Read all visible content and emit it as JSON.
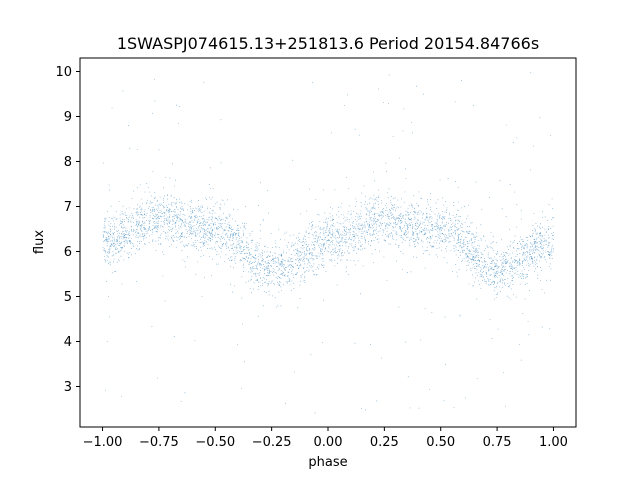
{
  "chart_data": {
    "type": "scatter",
    "title": "1SWASPJ074615.13+251813.6 Period 20154.84766s",
    "xlabel": "phase",
    "ylabel": "flux",
    "xlim": [
      -1.1,
      1.1
    ],
    "ylim": [
      2.1,
      10.3
    ],
    "xticks": [
      -1.0,
      -0.75,
      -0.5,
      -0.25,
      0.0,
      0.25,
      0.5,
      0.75,
      1.0
    ],
    "xtick_labels": [
      "−1.00",
      "−0.75",
      "−0.50",
      "−0.25",
      "0.00",
      "0.25",
      "0.50",
      "0.75",
      "1.00"
    ],
    "yticks": [
      3,
      4,
      5,
      6,
      7,
      8,
      9,
      10
    ],
    "ytick_labels": [
      "3",
      "4",
      "5",
      "6",
      "7",
      "8",
      "9",
      "10"
    ],
    "grid": false,
    "legend": "none",
    "marker_color": "#1f77b4",
    "series": [
      {
        "x_range": [
          -1.0,
          1.0
        ],
        "mean_curve": {
          "x": [
            -1.0,
            -0.75,
            -0.5,
            -0.25,
            0.0,
            0.25,
            0.5,
            0.75,
            1.0
          ],
          "y": [
            6.2,
            6.75,
            6.5,
            5.6,
            6.2,
            6.75,
            6.5,
            5.6,
            6.2
          ]
        },
        "band_half_width": 0.55,
        "outlier_y_range": [
          2.4,
          10.0
        ],
        "approx_point_count": 40000
      }
    ]
  }
}
